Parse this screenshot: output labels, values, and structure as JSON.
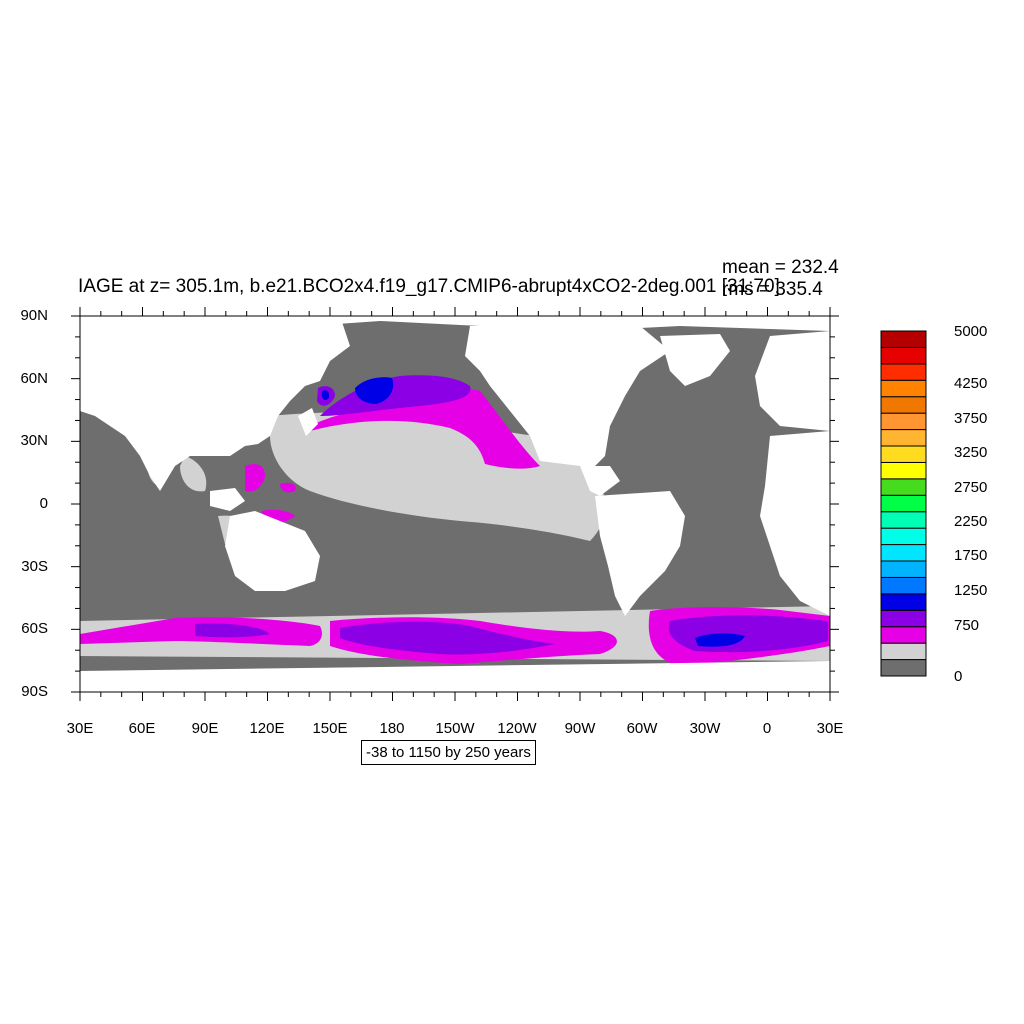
{
  "title": "IAGE at z= 305.1m, b.e21.BCO2x4.f19_g17.CMIP6-abrupt4xCO2-2deg.001 [31:70]",
  "stats": {
    "mean": "mean = 232.4",
    "rms": "rms = 335.4"
  },
  "axes": {
    "y_ticks": [
      "90N",
      "60N",
      "30N",
      "0",
      "30S",
      "60S",
      "90S"
    ],
    "x_ticks": [
      "30E",
      "60E",
      "90E",
      "120E",
      "150E",
      "180",
      "150W",
      "120W",
      "90W",
      "60W",
      "30W",
      "0",
      "30E"
    ]
  },
  "contour_info": "-38 to 1150 by 250 years",
  "colorbar": {
    "colors": [
      "#6e6e6e",
      "#d2d2d2",
      "#e600e6",
      "#8c00e6",
      "#0000e6",
      "#0078ff",
      "#00b4ff",
      "#00e6ff",
      "#00ffe6",
      "#00ffb4",
      "#00ff46",
      "#46dc1e",
      "#ffff00",
      "#ffdc1e",
      "#ffb432",
      "#ff9632",
      "#f07800",
      "#ff8200",
      "#ff2d00",
      "#e60000",
      "#b40000"
    ],
    "labels": [
      "0",
      "750",
      "1250",
      "1750",
      "2250",
      "2750",
      "3250",
      "3750",
      "4250",
      "5000"
    ]
  },
  "map_colors": {
    "land": "#ffffff",
    "bottom": "#6e6e6e",
    "low": "#d2d2d2",
    "mid": "#e600e6",
    "high": "#8c00e6",
    "peak": "#0000e6"
  }
}
